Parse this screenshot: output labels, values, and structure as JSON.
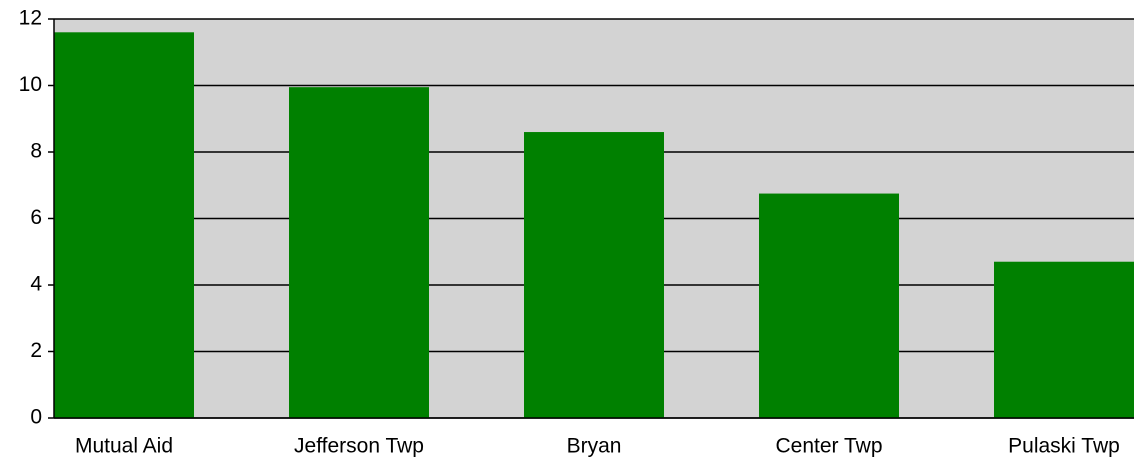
{
  "chart_data": {
    "type": "bar",
    "categories": [
      "Mutual Aid",
      "Jefferson Twp",
      "Bryan",
      "Center Twp",
      "Pulaski Twp"
    ],
    "values": [
      11.6,
      9.95,
      8.6,
      6.75,
      4.7
    ],
    "color": "#008000",
    "ylim": [
      0,
      12
    ],
    "yticks": [
      0,
      2,
      4,
      6,
      8,
      10,
      12
    ],
    "grid": true
  }
}
